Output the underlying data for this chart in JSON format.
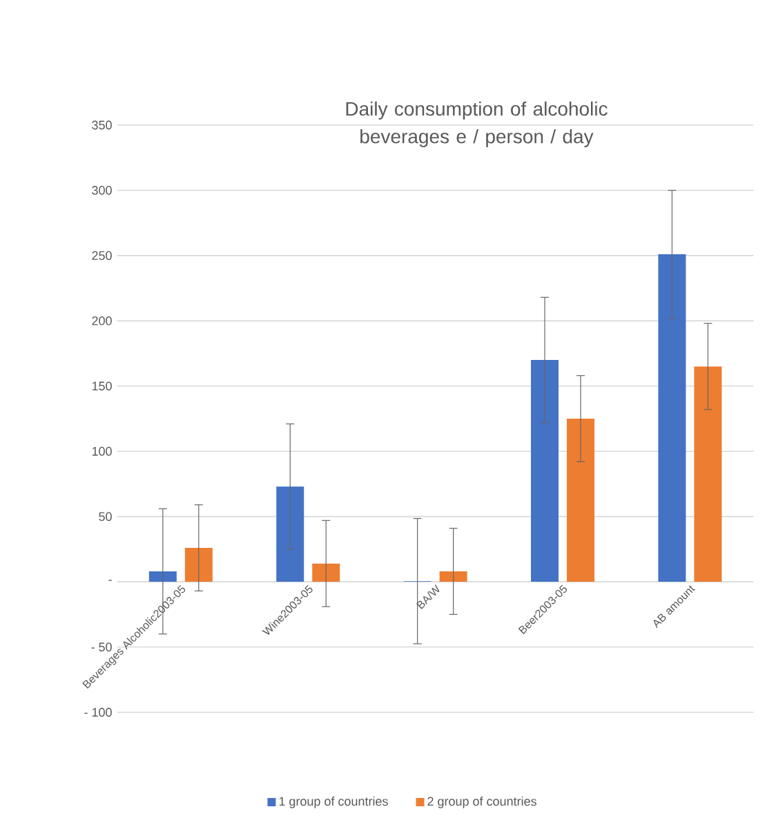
{
  "chart_data": {
    "type": "bar",
    "title": "Daily consumption of alcoholic beverages e / person / day",
    "categories": [
      "Beverages Alcoholic2003-05",
      "Wine2003-05",
      "BA/W",
      "Beer2003-05",
      "AB amount"
    ],
    "series": [
      {
        "name": "1 group of countries",
        "color": "#4472c4",
        "values": [
          8,
          73,
          0.5,
          170,
          251
        ],
        "errors": [
          48,
          48,
          48,
          48,
          49
        ]
      },
      {
        "name": "2 group of countries",
        "color": "#ed7d31",
        "values": [
          26,
          14,
          8,
          125,
          165
        ],
        "errors": [
          33,
          33,
          33,
          33,
          33
        ]
      }
    ],
    "ylim": [
      -100,
      350
    ],
    "yticks": [
      {
        "value": -100,
        "label": "- 100"
      },
      {
        "value": -50,
        "label": "- 50"
      },
      {
        "value": 0,
        "label": "-"
      },
      50,
      100,
      150,
      200,
      250,
      300,
      350
    ],
    "grid": "y",
    "legend": "bottom"
  }
}
